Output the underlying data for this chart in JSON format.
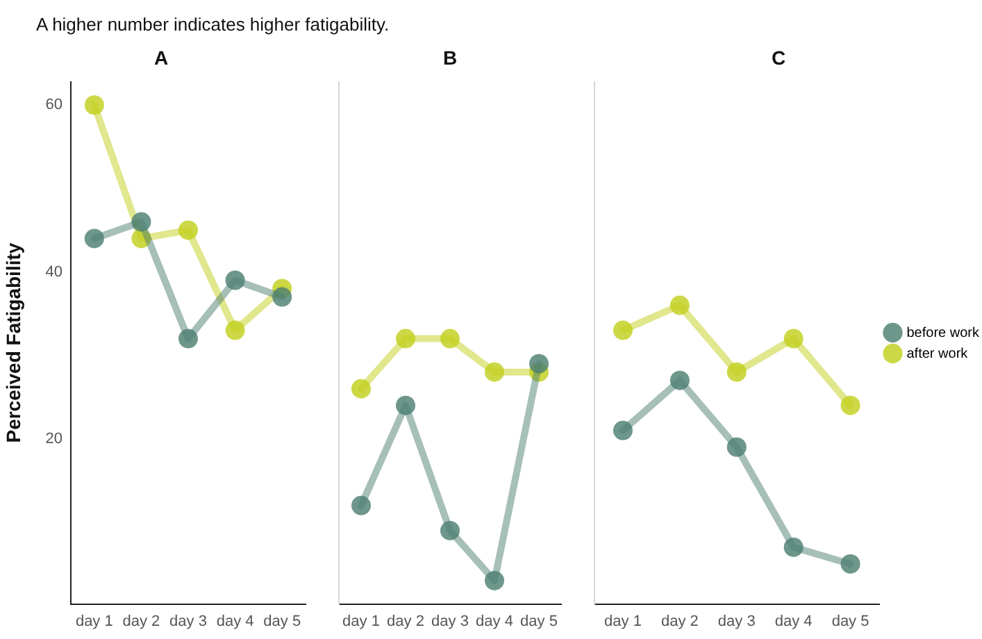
{
  "chart_data": [
    {
      "type": "line",
      "title": "A",
      "subtitle": "A higher number indicates higher fatigability.",
      "ylabel": "Perceived Fatigability",
      "categories": [
        "day 1",
        "day 2",
        "day 3",
        "day 4",
        "day 5"
      ],
      "ylim": [
        0.2,
        62.8
      ],
      "yticks": [
        20,
        40,
        60
      ],
      "grid": false,
      "legend": false,
      "marker": "circle",
      "line_style": "solid",
      "series": [
        {
          "color": "#4d7f72",
          "values": [
            44,
            46,
            32,
            39,
            37
          ]
        },
        {
          "color": "#c2cf1c",
          "values": [
            60,
            44,
            45,
            33,
            38
          ]
        }
      ]
    },
    {
      "type": "line",
      "title": "B",
      "categories": [
        "day 1",
        "day 2",
        "day 3",
        "day 4",
        "day 5"
      ],
      "ylim": [
        0.2,
        62.8
      ],
      "yticks": [
        20,
        40,
        60
      ],
      "tick_labels": "x",
      "grid": false,
      "legend": false,
      "marker": "circle",
      "line_style": "solid",
      "series": [
        {
          "color": "#4d7f72",
          "values": [
            12,
            24,
            9,
            3,
            29
          ]
        },
        {
          "color": "#c2cf1c",
          "values": [
            26,
            32,
            32,
            28,
            28
          ]
        }
      ]
    },
    {
      "type": "line",
      "title": "C",
      "categories": [
        "day 1",
        "day 2",
        "day 3",
        "day 4",
        "day 5"
      ],
      "ylim": [
        0.2,
        62.8
      ],
      "yticks": [
        20,
        40,
        60
      ],
      "tick_labels": "x",
      "grid": false,
      "legend": "right",
      "marker": "circle",
      "line_style": "solid",
      "series": [
        {
          "name": "before work",
          "color": "#4d7f72",
          "values": [
            21,
            27,
            19,
            7,
            5
          ]
        },
        {
          "name": "after work",
          "color": "#c2cf1c",
          "values": [
            33,
            36,
            28,
            32,
            24
          ]
        }
      ]
    }
  ]
}
